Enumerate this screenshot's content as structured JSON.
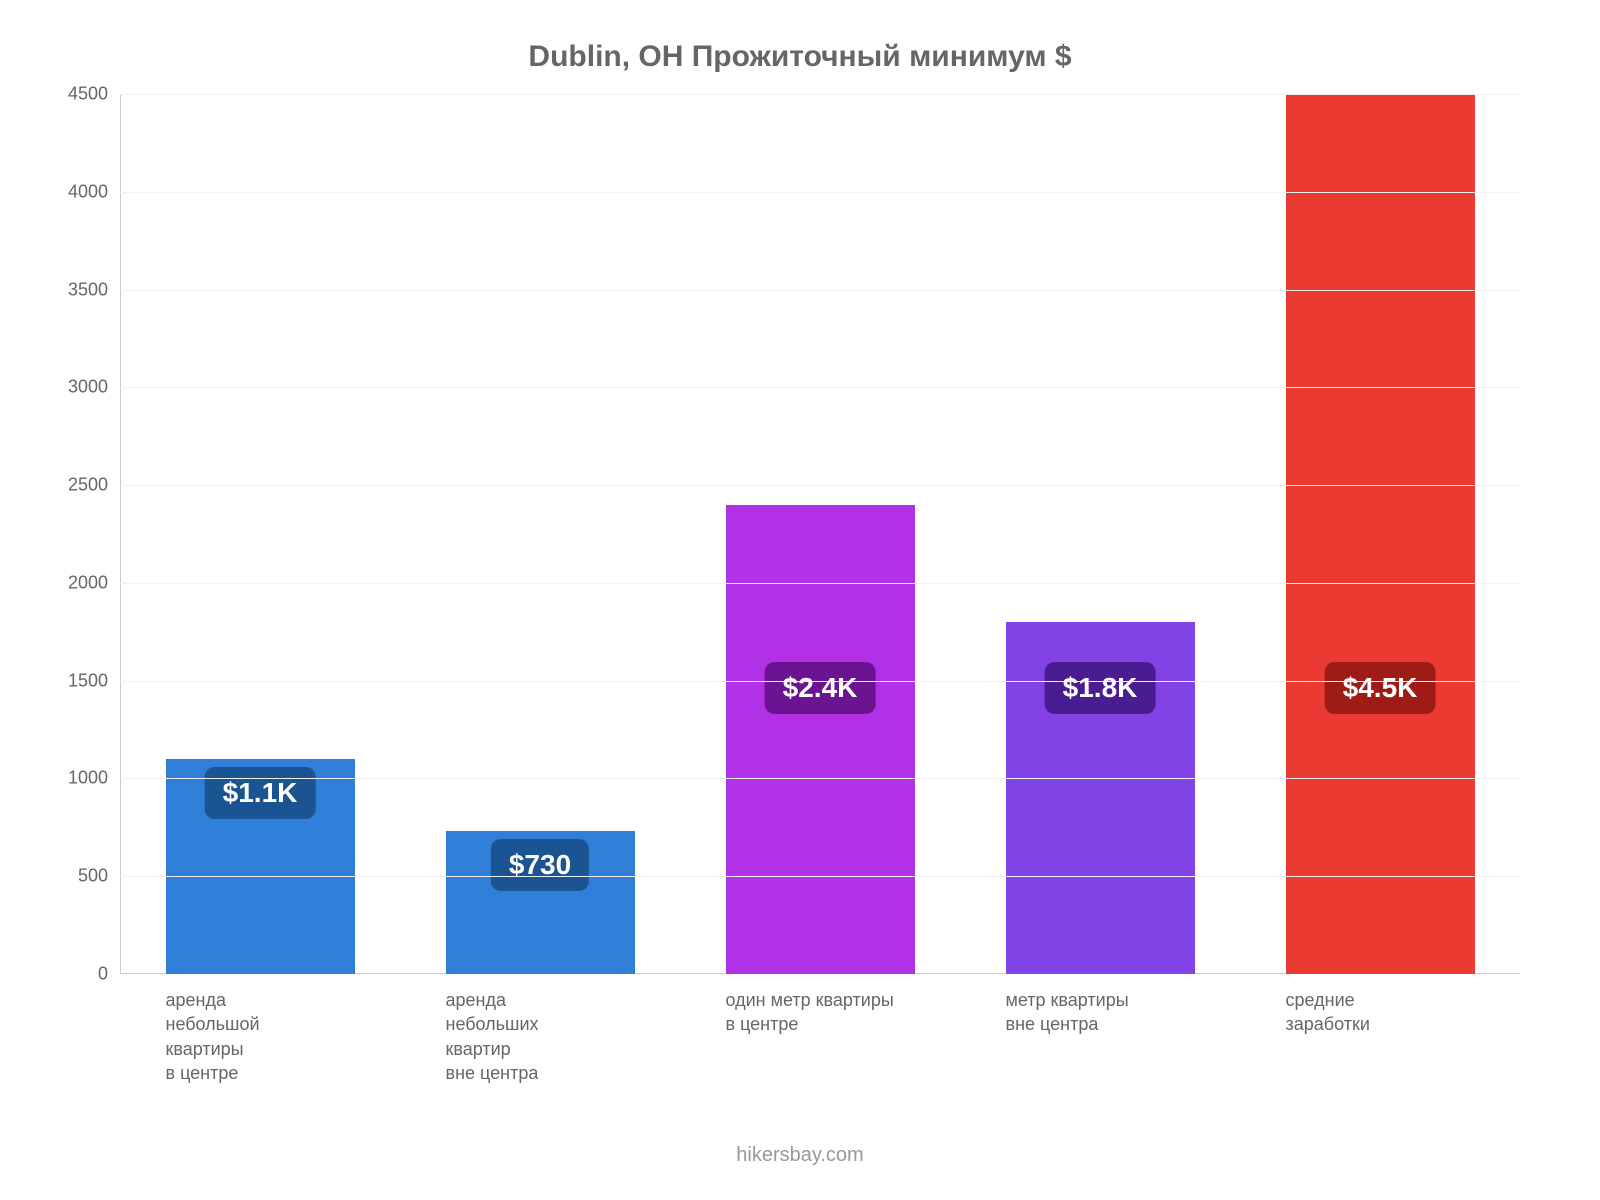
{
  "chart": {
    "type": "bar",
    "title": "Dublin, OH Прожиточный минимум $",
    "title_fontsize": 30,
    "title_color": "#666666",
    "background_color": "#ffffff",
    "axis_color": "#cccccc",
    "grid_color": "#f0f0f0",
    "tick_label_color": "#666666",
    "tick_label_fontsize": 18,
    "x_label_fontsize": 18,
    "x_label_color": "#666666",
    "value_label_fontsize": 28,
    "value_label_text_color": "#ffffff",
    "ylim": [
      0,
      4500
    ],
    "ytick_step": 500,
    "yticks": [
      0,
      500,
      1000,
      1500,
      2000,
      2500,
      3000,
      3500,
      4000,
      4500
    ],
    "bar_width_pct": 13.5,
    "bar_gap_pct": 20,
    "categories": [
      "аренда\nнебольшой\nквартиры\nв центре",
      "аренда\nнебольших\nквартир\nвне центра",
      "один метр квартиры\nв центре",
      "метр квартиры\nвне центра",
      "средние\nзаработки"
    ],
    "values": [
      1100,
      730,
      2400,
      1800,
      4500
    ],
    "value_labels": [
      "$1.1K",
      "$730",
      "$2.4K",
      "$1.8K",
      "$4.5K"
    ],
    "bar_colors": [
      "#2f7ed8",
      "#2f7ed8",
      "#b031e6",
      "#8142e6",
      "#ea3a31"
    ],
    "badge_colors": [
      "#1a5493",
      "#1a5493",
      "#6a1492",
      "#4a1c92",
      "#9f1c16"
    ],
    "badge_offsets": [
      260,
      100,
      260,
      260,
      260
    ]
  },
  "footer": {
    "text": "hikersbay.com",
    "color": "#999999",
    "fontsize": 20
  }
}
